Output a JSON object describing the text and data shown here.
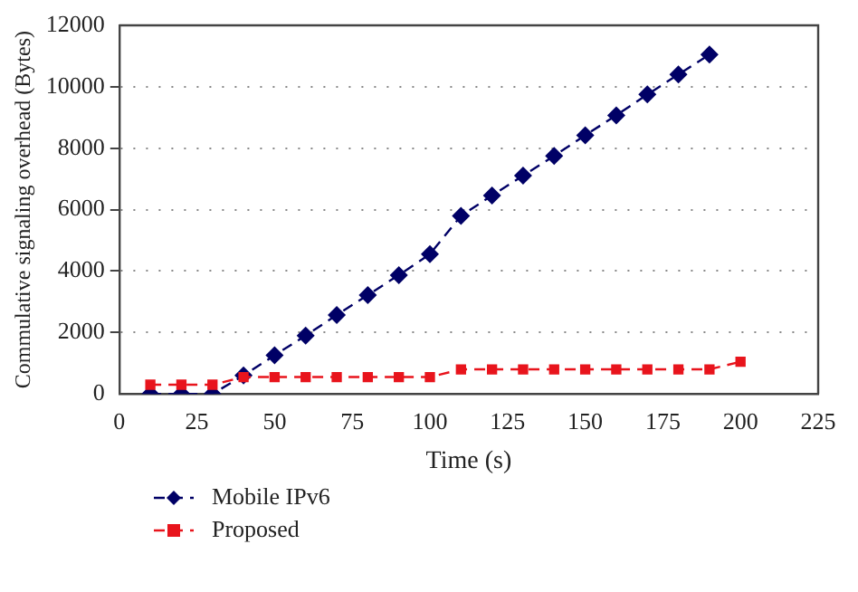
{
  "chart_data": {
    "type": "line",
    "xlabel": "Time (s)",
    "ylabel": "Commulative signaling overhead (Bytes)",
    "x": [
      10,
      20,
      30,
      40,
      50,
      60,
      70,
      80,
      90,
      100,
      110,
      120,
      130,
      140,
      150,
      160,
      170,
      180,
      190,
      200
    ],
    "series": [
      {
        "name": "Mobile IPv6",
        "color": "#000066",
        "marker": "diamond",
        "values": [
          0,
          0,
          0,
          600,
          1260,
          1900,
          2570,
          3220,
          3870,
          4550,
          5800,
          6460,
          7110,
          7750,
          8420,
          9070,
          9750,
          10400,
          11050,
          null
        ]
      },
      {
        "name": "Proposed",
        "color": "#e8141c",
        "marker": "square",
        "values": [
          300,
          300,
          300,
          550,
          550,
          550,
          550,
          550,
          550,
          550,
          800,
          800,
          800,
          800,
          800,
          800,
          800,
          800,
          800,
          1050
        ]
      }
    ],
    "xlim": [
      0,
      225
    ],
    "xticks": [
      0,
      25,
      50,
      75,
      100,
      125,
      150,
      175,
      200,
      225
    ],
    "ylim": [
      0,
      12000
    ],
    "yticks": [
      0,
      2000,
      4000,
      6000,
      8000,
      10000,
      12000
    ],
    "grid": "y",
    "legend": "bottom left",
    "line_style": "dashed"
  }
}
